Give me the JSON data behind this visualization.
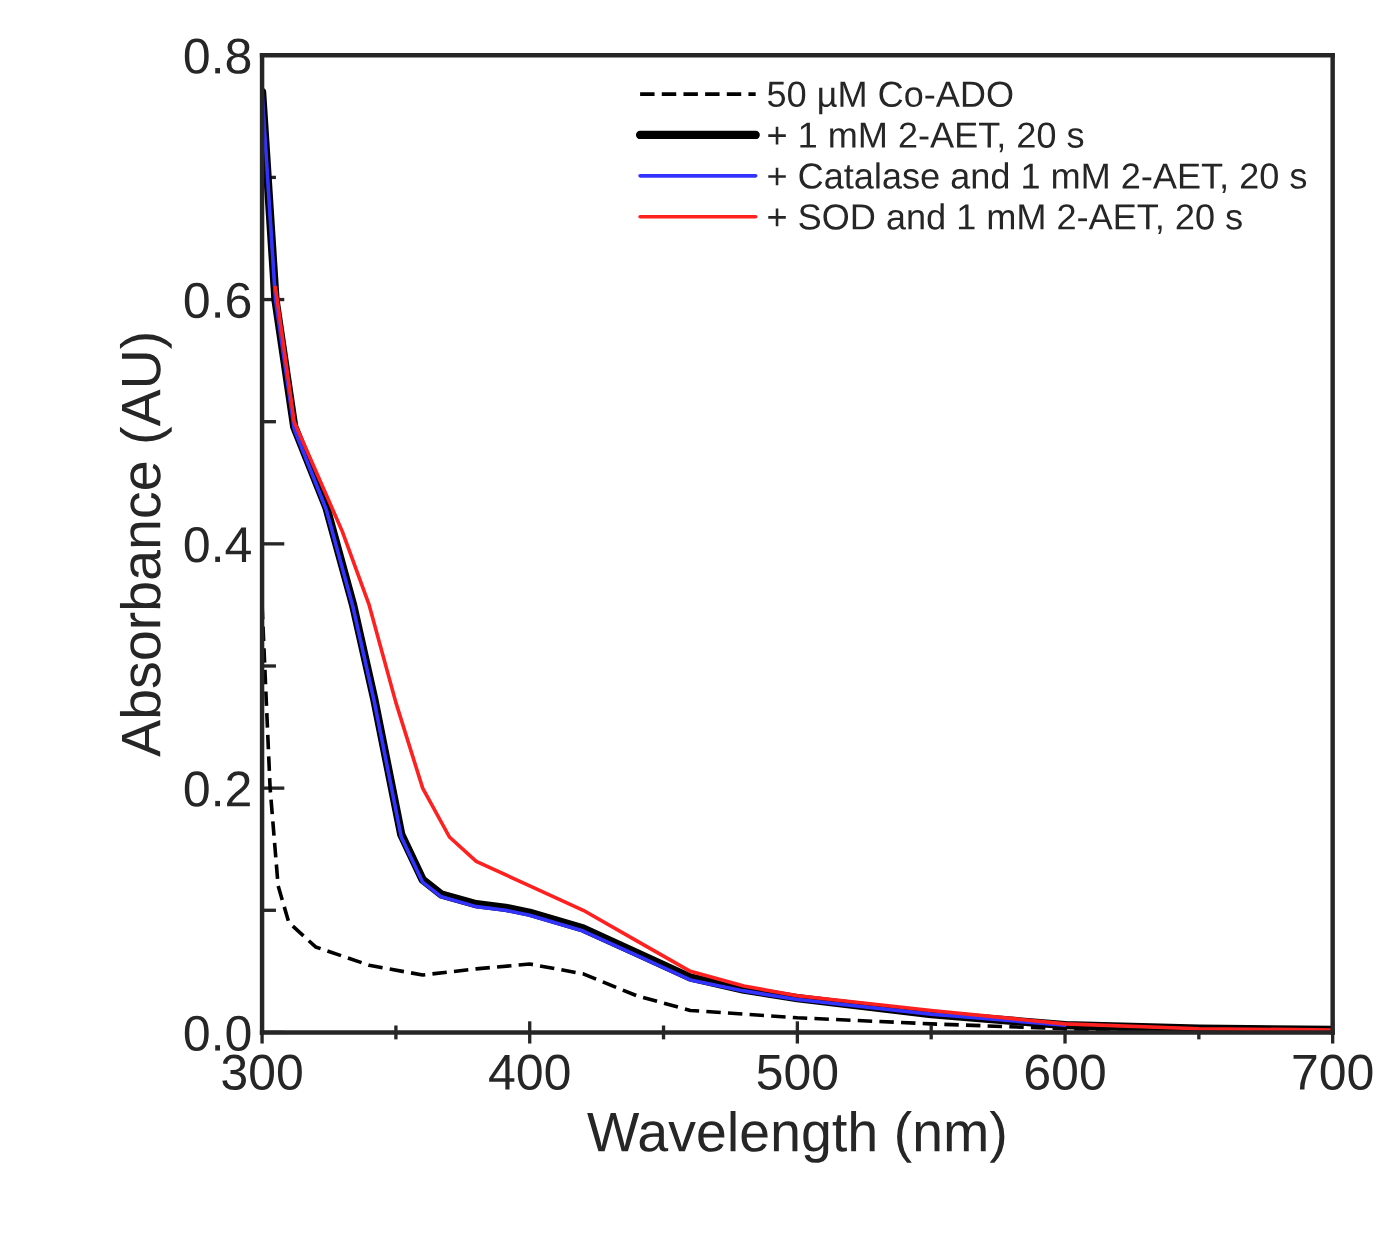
{
  "chart_data": {
    "type": "line",
    "xlabel": "Wavelength (nm)",
    "ylabel": "Absorbance (AU)",
    "xlim": [
      300,
      700
    ],
    "ylim": [
      0,
      0.8
    ],
    "xticks": [
      300,
      400,
      500,
      600,
      700
    ],
    "yticks": [
      {
        "value": 0,
        "label": "0.0"
      },
      0.2,
      0.4,
      0.6,
      0.8
    ],
    "legend": "top right",
    "grid": false,
    "marker": "none",
    "series": [
      {
        "name": "50 µM Co-ADO",
        "color": "#000000",
        "line_style": "dashed",
        "x": [
          300,
          303,
          306,
          310,
          320,
          340,
          360,
          380,
          400,
          420,
          440,
          460,
          500,
          550,
          600,
          650,
          700
        ],
        "values": [
          0.35,
          0.2,
          0.12,
          0.09,
          0.07,
          0.055,
          0.047,
          0.052,
          0.056,
          0.048,
          0.03,
          0.018,
          0.012,
          0.007,
          0.003,
          0.001,
          0.0
        ]
      },
      {
        "name": "+ 1 mM 2-AET, 20 s",
        "color": "#000000",
        "line_style": "solid",
        "x": [
          300,
          305,
          312,
          324,
          334,
          342,
          352,
          360,
          367,
          380,
          391,
          400,
          420,
          440,
          460,
          480,
          500,
          550,
          600,
          650,
          700
        ],
        "values": [
          0.77,
          0.6,
          0.496,
          0.43,
          0.35,
          0.272,
          0.162,
          0.125,
          0.113,
          0.105,
          0.102,
          0.098,
          0.085,
          0.065,
          0.045,
          0.035,
          0.028,
          0.015,
          0.006,
          0.003,
          0.002
        ]
      },
      {
        "name": "+ Catalase and 1 mM 2-AET, 20 s",
        "color": "#3333ff",
        "line_style": "solid",
        "x": [
          300,
          305,
          312,
          324,
          334,
          342,
          352,
          360,
          367,
          380,
          391,
          400,
          420,
          440,
          460,
          480,
          500,
          550,
          600
        ],
        "values": [
          0.77,
          0.6,
          0.494,
          0.428,
          0.348,
          0.27,
          0.16,
          0.123,
          0.111,
          0.103,
          0.1,
          0.096,
          0.083,
          0.063,
          0.043,
          0.034,
          0.027,
          0.015,
          0.006
        ]
      },
      {
        "name": "+ SOD and 1 mM 2-AET, 20 s",
        "color": "#ff2020",
        "line_style": "solid",
        "x": [
          305,
          312,
          320,
          330,
          340,
          350,
          360,
          370,
          380,
          400,
          420,
          440,
          460,
          480,
          500,
          550,
          600,
          650,
          700
        ],
        "values": [
          0.61,
          0.5,
          0.46,
          0.41,
          0.35,
          0.27,
          0.2,
          0.16,
          0.14,
          0.12,
          0.1,
          0.075,
          0.05,
          0.038,
          0.03,
          0.018,
          0.007,
          0.003,
          0.002
        ]
      }
    ]
  }
}
